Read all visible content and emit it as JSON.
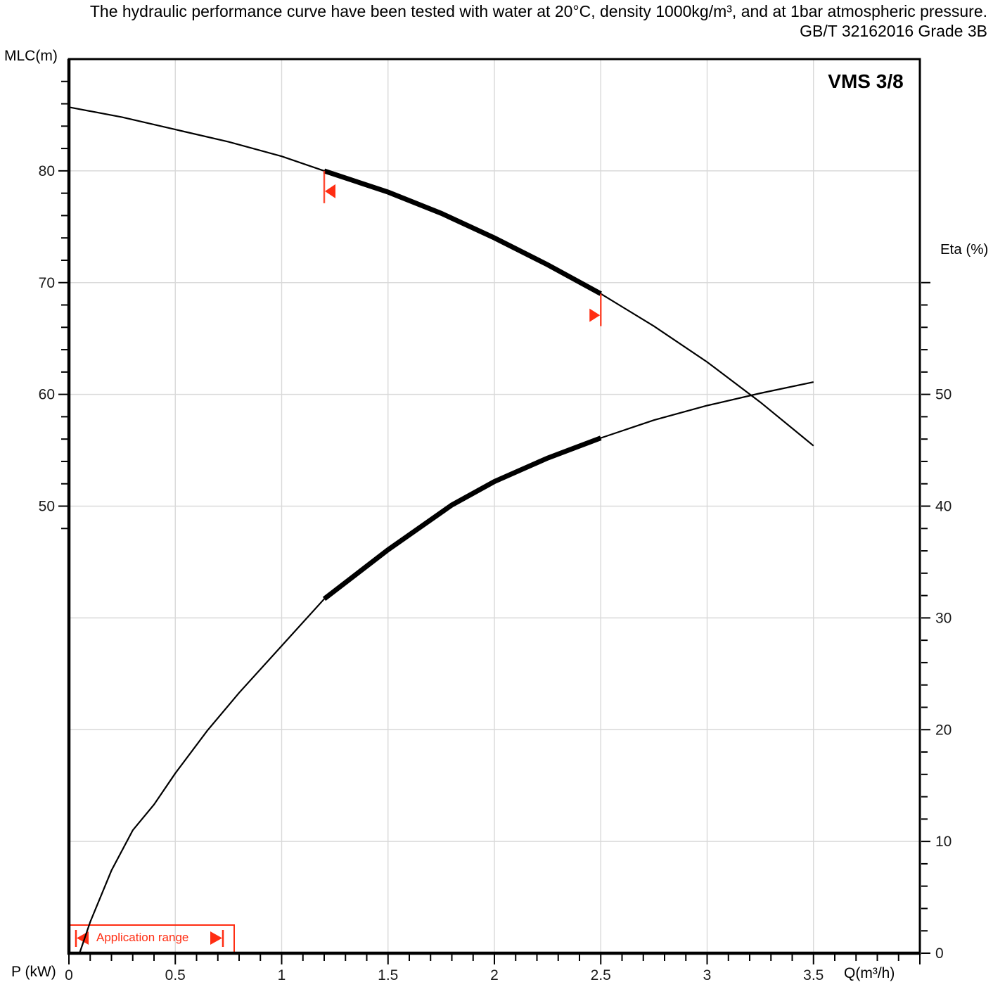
{
  "header": {
    "line1": "The hydraulic performance curve have been tested with water at 20°C, density 1000kg/m³, and at 1bar atmospheric pressure.",
    "line2": "GB/T 32162016 Grade 3B"
  },
  "chart_data": {
    "type": "line",
    "title": "VMS 3/8",
    "xlabel": "Q(m³/h)",
    "p_label": "P (kW)",
    "grid": true,
    "x": {
      "min": 0,
      "max": 4,
      "minor_step": 0.1,
      "major_ticks": [
        0,
        0.5,
        1,
        1.5,
        2,
        2.5,
        3,
        3.5
      ],
      "major_labels": [
        "0",
        "0.5",
        "1",
        "1.5",
        "2",
        "2.5",
        "3",
        "3.5"
      ]
    },
    "y_left": {
      "label": "MLC(m)",
      "min": 10,
      "max": 90,
      "minor_step": 2,
      "tick_range": [
        48,
        88
      ],
      "labeled_ticks": [
        50,
        60,
        70,
        80
      ],
      "labels": [
        "50",
        "60",
        "70",
        "80"
      ],
      "grid_values": [
        80,
        70,
        60,
        50,
        40,
        30,
        20
      ]
    },
    "y_right": {
      "label": "Eta (%)",
      "min": 0,
      "scale_max": 80,
      "minor_step": 2,
      "tick_range": [
        0,
        60
      ],
      "labeled_ticks": [
        0,
        10,
        20,
        30,
        40,
        50
      ],
      "labels": [
        "0",
        "10",
        "20",
        "30",
        "40",
        "50"
      ]
    },
    "series": [
      {
        "name": "head-curve",
        "axis": "left",
        "bold_range": [
          1.2,
          2.5
        ],
        "points": [
          [
            0,
            85.7
          ],
          [
            0.25,
            84.8
          ],
          [
            0.5,
            83.7
          ],
          [
            0.75,
            82.6
          ],
          [
            1.0,
            81.3
          ],
          [
            1.2,
            80.0
          ],
          [
            1.5,
            78.1
          ],
          [
            1.75,
            76.2
          ],
          [
            2.0,
            74.0
          ],
          [
            2.25,
            71.6
          ],
          [
            2.5,
            69.0
          ],
          [
            2.75,
            66.1
          ],
          [
            3.0,
            62.9
          ],
          [
            3.25,
            59.3
          ],
          [
            3.5,
            55.4
          ]
        ]
      },
      {
        "name": "efficiency-curve",
        "axis": "right",
        "bold_range": [
          1.2,
          2.5
        ],
        "points": [
          [
            0.05,
            0
          ],
          [
            0.1,
            2.8
          ],
          [
            0.2,
            7.4
          ],
          [
            0.3,
            11.0
          ],
          [
            0.4,
            13.3
          ],
          [
            0.5,
            16.1
          ],
          [
            0.65,
            19.9
          ],
          [
            0.8,
            23.3
          ],
          [
            1.0,
            27.5
          ],
          [
            1.2,
            31.7
          ],
          [
            1.5,
            36.1
          ],
          [
            1.8,
            40.1
          ],
          [
            2.0,
            42.2
          ],
          [
            2.25,
            44.3
          ],
          [
            2.5,
            46.1
          ],
          [
            2.75,
            47.7
          ],
          [
            3.0,
            49.0
          ],
          [
            3.25,
            50.1
          ],
          [
            3.5,
            51.1
          ]
        ]
      }
    ],
    "application_range": {
      "label": "Application range",
      "q_start": 1.2,
      "q_end": 2.5
    },
    "colors": {
      "curve": "#000000",
      "grid": "#d9d9d9",
      "accent_red": "#ff2d12",
      "tick_text": "#1a1a1a"
    }
  }
}
